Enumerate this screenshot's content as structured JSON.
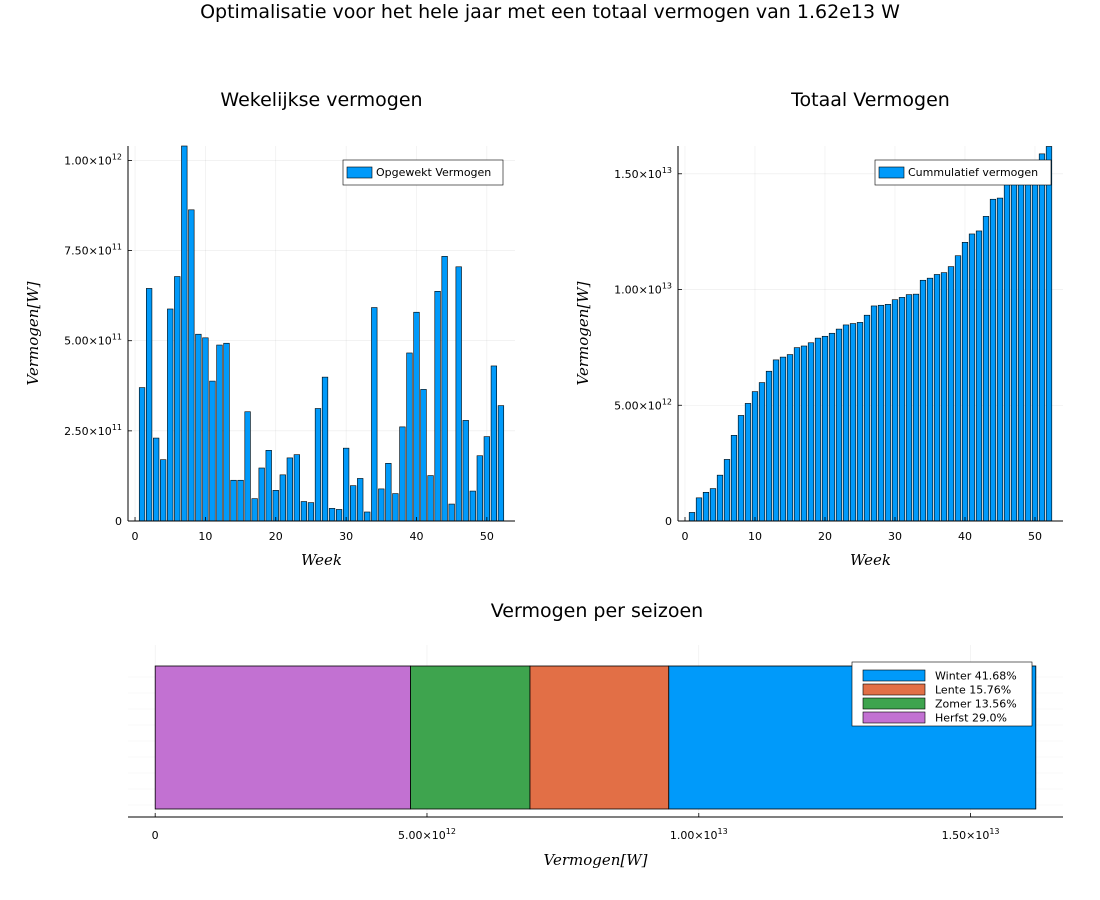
{
  "supertitle": "Optimalisatie voor het hele jaar met een totaal vermogen van 1.62e13 W",
  "colors": {
    "bar": "#009AFA",
    "winter": "#009AFA",
    "lente": "#E26F46",
    "zomer": "#3EA44E",
    "herfst": "#C271D2"
  },
  "chart_data": [
    {
      "type": "bar",
      "title": "Wekelijkse vermogen",
      "xlabel": "Week",
      "ylabel": "Vermogen[W]",
      "legend": "top-right",
      "legend_entries": [
        "Opgewekt Vermogen"
      ],
      "xlim": [
        -1,
        54
      ],
      "ylim": [
        0,
        1040000000000.0
      ],
      "xticks": [
        0,
        10,
        20,
        30,
        40,
        50
      ],
      "xtick_labels": [
        "0",
        "10",
        "20",
        "30",
        "40",
        "50"
      ],
      "yticks": [
        0,
        250000000000.0,
        500000000000.0,
        750000000000.0,
        1000000000000.0
      ],
      "ytick_labels": [
        {
          "mant": "0",
          "exp": ""
        },
        {
          "mant": "2.50×10",
          "exp": "11"
        },
        {
          "mant": "5.00×10",
          "exp": "11"
        },
        {
          "mant": "7.50×10",
          "exp": "11"
        },
        {
          "mant": "1.00×10",
          "exp": "12"
        }
      ],
      "x": [
        1,
        2,
        3,
        4,
        5,
        6,
        7,
        8,
        9,
        10,
        11,
        12,
        13,
        14,
        15,
        16,
        17,
        18,
        19,
        20,
        21,
        22,
        23,
        24,
        25,
        26,
        27,
        28,
        29,
        30,
        31,
        32,
        33,
        34,
        35,
        36,
        37,
        38,
        39,
        40,
        41,
        42,
        43,
        44,
        45,
        46,
        47,
        48,
        49,
        50,
        51,
        52
      ],
      "series": [
        {
          "name": "Opgewekt Vermogen",
          "values": [
            370000000000.0,
            645000000000.0,
            230000000000.0,
            170000000000.0,
            588000000000.0,
            678000000000.0,
            1040000000000.0,
            863000000000.0,
            518000000000.0,
            508000000000.0,
            388000000000.0,
            488000000000.0,
            493000000000.0,
            113000000000.0,
            113000000000.0,
            303000000000.0,
            62000000000.0,
            147000000000.0,
            196000000000.0,
            85000000000.0,
            128000000000.0,
            175000000000.0,
            184000000000.0,
            54000000000.0,
            51000000000.0,
            312000000000.0,
            399000000000.0,
            35000000000.0,
            32000000000.0,
            202000000000.0,
            98000000000.0,
            118000000000.0,
            25000000000.0,
            592000000000.0,
            89000000000.0,
            160000000000.0,
            76000000000.0,
            261000000000.0,
            466000000000.0,
            579000000000.0,
            365000000000.0,
            126000000000.0,
            637000000000.0,
            734000000000.0,
            47000000000.0,
            705000000000.0,
            279000000000.0,
            83000000000.0,
            181000000000.0,
            234000000000.0,
            430000000000.0,
            320000000000.0
          ]
        }
      ]
    },
    {
      "type": "bar",
      "title": "Totaal Vermogen",
      "xlabel": "Week",
      "ylabel": "Vermogen[W]",
      "legend": "top-right",
      "legend_entries": [
        "Cummulatief vermogen"
      ],
      "xlim": [
        -1,
        54
      ],
      "ylim": [
        0,
        16200000000000.0
      ],
      "xticks": [
        0,
        10,
        20,
        30,
        40,
        50
      ],
      "xtick_labels": [
        "0",
        "10",
        "20",
        "30",
        "40",
        "50"
      ],
      "yticks": [
        0,
        5000000000000.0,
        10000000000000.0,
        15000000000000.0
      ],
      "ytick_labels": [
        {
          "mant": "0",
          "exp": ""
        },
        {
          "mant": "5.00×10",
          "exp": "12"
        },
        {
          "mant": "1.00×10",
          "exp": "13"
        },
        {
          "mant": "1.50×10",
          "exp": "13"
        }
      ],
      "x": [
        1,
        2,
        3,
        4,
        5,
        6,
        7,
        8,
        9,
        10,
        11,
        12,
        13,
        14,
        15,
        16,
        17,
        18,
        19,
        20,
        21,
        22,
        23,
        24,
        25,
        26,
        27,
        28,
        29,
        30,
        31,
        32,
        33,
        34,
        35,
        36,
        37,
        38,
        39,
        40,
        41,
        42,
        43,
        44,
        45,
        46,
        47,
        48,
        49,
        50,
        51,
        52
      ],
      "series": [
        {
          "name": "Cummulatief vermogen",
          "values": [
            370000000000.0,
            1000000000000.0,
            1240000000000.0,
            1400000000000.0,
            1980000000000.0,
            2660000000000.0,
            3700000000000.0,
            4560000000000.0,
            5080000000000.0,
            5590000000000.0,
            5980000000000.0,
            6470000000000.0,
            6960000000000.0,
            7080000000000.0,
            7190000000000.0,
            7490000000000.0,
            7560000000000.0,
            7700000000000.0,
            7900000000000.0,
            7980000000000.0,
            8110000000000.0,
            8290000000000.0,
            8470000000000.0,
            8530000000000.0,
            8580000000000.0,
            8890000000000.0,
            9290000000000.0,
            9320000000000.0,
            9360000000000.0,
            9560000000000.0,
            9660000000000.0,
            9780000000000.0,
            9800000000000.0,
            10400000000000.0,
            10490000000000.0,
            10650000000000.0,
            10730000000000.0,
            10990000000000.0,
            11460000000000.0,
            12040000000000.0,
            12400000000000.0,
            12530000000000.0,
            13160000000000.0,
            13900000000000.0,
            13950000000000.0,
            14650000000000.0,
            14930000000000.0,
            15010000000000.0,
            15190000000000.0,
            15430000000000.0,
            15860000000000.0,
            16180000000000.0
          ]
        }
      ]
    },
    {
      "type": "bar",
      "orientation": "horizontal-stacked",
      "title": "Vermogen per seizoen",
      "xlabel": "Vermogen[W]",
      "ylabel": "",
      "legend": "top-right",
      "xlim": [
        -500000000000.0,
        16700000000000.0
      ],
      "xticks": [
        0,
        5000000000000.0,
        10000000000000.0,
        15000000000000.0
      ],
      "xtick_labels": [
        {
          "mant": "0",
          "exp": ""
        },
        {
          "mant": "5.00×10",
          "exp": "12"
        },
        {
          "mant": "1.00×10",
          "exp": "13"
        },
        {
          "mant": "1.50×10",
          "exp": "13"
        }
      ],
      "total": 16200000000000.0,
      "segments_order_left_to_right": [
        "Herfst",
        "Zomer",
        "Lente",
        "Winter"
      ],
      "series": [
        {
          "name": "Winter",
          "label": "Winter 41.68%",
          "percent": 41.68,
          "value": 6752000000000.0,
          "color_key": "winter"
        },
        {
          "name": "Lente",
          "label": "Lente 15.76%",
          "percent": 15.76,
          "value": 2553000000000.0,
          "color_key": "lente"
        },
        {
          "name": "Zomer",
          "label": "Zomer 13.56%",
          "percent": 13.56,
          "value": 2197000000000.0,
          "color_key": "zomer"
        },
        {
          "name": "Herfst",
          "label": "Herfst 29.0%",
          "percent": 29.0,
          "value": 4698000000000.0,
          "color_key": "herfst"
        }
      ]
    }
  ]
}
